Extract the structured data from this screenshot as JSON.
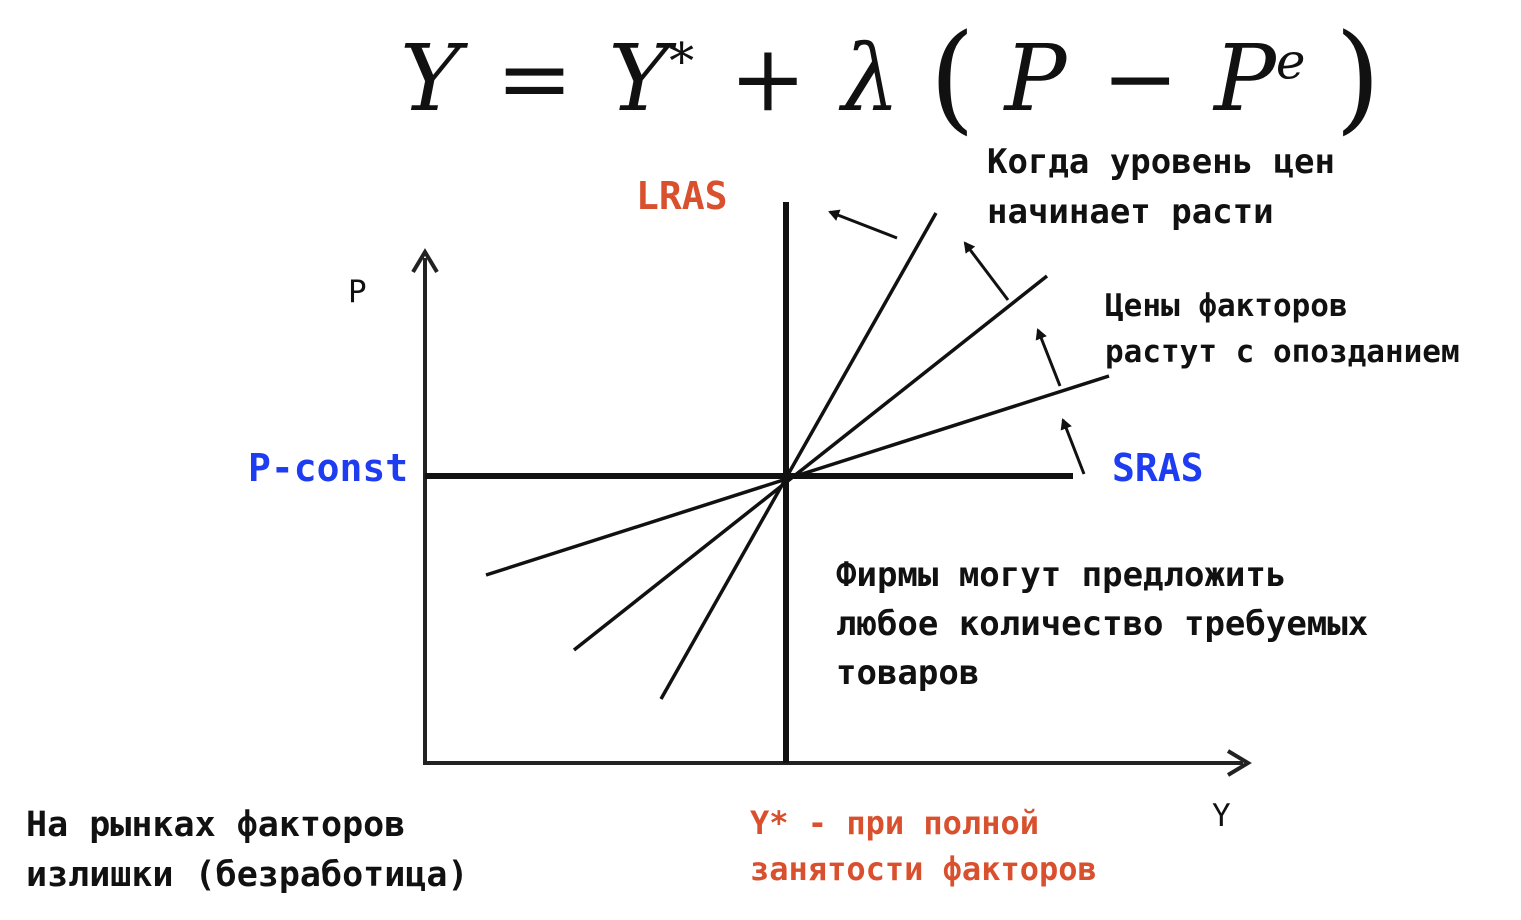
{
  "formula": {
    "lhs": "Y",
    "equals": "=",
    "y_star_base": "Y",
    "y_star_sup": "*",
    "plus": "+",
    "lambda": "λ",
    "lparen": "(",
    "p": "P",
    "minus": "−",
    "pe_base": "P",
    "pe_sup": "e",
    "rparen": ")"
  },
  "axes": {
    "y_label": "P",
    "x_label": "Y"
  },
  "curves": {
    "lras_label": "LRAS",
    "sras_label": "SRAS",
    "p_const_label": "P-const",
    "y_star_label_line1": "Y* - при полной",
    "y_star_label_line2": "занятости факторов"
  },
  "notes": {
    "price_rise_line1": "Когда уровень цен",
    "price_rise_line2": "начинает расти",
    "factor_lag_line1": "Цены факторов",
    "factor_lag_line2": "растут с опозданием",
    "firms_line1": "Фирмы могут предложить",
    "firms_line2": "любое количество требуемых",
    "firms_line3": "товаров",
    "surplus_line1": "На рынках факторов",
    "surplus_line2": "излишки (безработица)"
  },
  "colors": {
    "lras": "#d9502e",
    "sras": "#1f3df0",
    "p_const": "#1f3df0",
    "y_star": "#d9502e",
    "ink": "#111111"
  }
}
